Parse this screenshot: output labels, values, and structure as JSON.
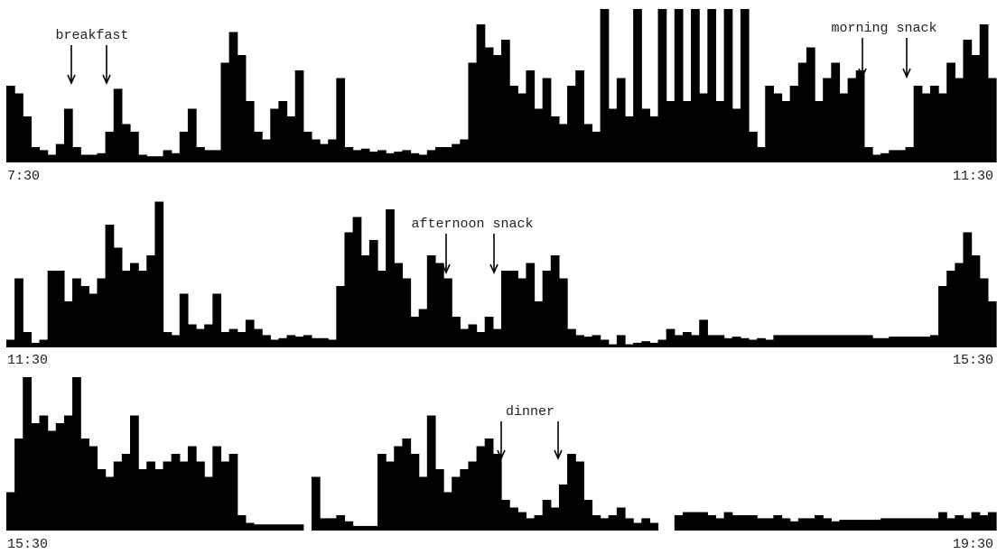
{
  "chart_data": [
    {
      "type": "bar",
      "color": "#000000",
      "ylim": [
        0,
        100
      ],
      "x_labels": [
        "7:30",
        "11:30"
      ],
      "annotations": [
        "breakfast",
        "morning snack"
      ],
      "values": [
        50,
        45,
        30,
        10,
        8,
        5,
        12,
        35,
        10,
        5,
        5,
        6,
        20,
        48,
        25,
        20,
        5,
        4,
        4,
        8,
        6,
        20,
        35,
        10,
        8,
        8,
        65,
        85,
        70,
        40,
        20,
        15,
        35,
        40,
        30,
        60,
        20,
        15,
        12,
        15,
        55,
        10,
        8,
        9,
        7,
        8,
        6,
        7,
        8,
        6,
        5,
        8,
        10,
        10,
        12,
        15,
        65,
        90,
        75,
        70,
        80,
        50,
        45,
        60,
        35,
        55,
        30,
        25,
        50,
        60,
        25,
        20,
        100,
        35,
        55,
        30,
        100,
        35,
        30,
        100,
        40,
        100,
        40,
        100,
        45,
        100,
        40,
        100,
        35,
        100,
        20,
        10,
        50,
        45,
        40,
        50,
        65,
        75,
        40,
        55,
        65,
        45,
        55,
        60,
        10,
        5,
        6,
        8,
        8,
        10,
        50,
        45,
        50,
        45,
        65,
        55,
        80,
        70,
        90,
        55
      ]
    },
    {
      "type": "bar",
      "color": "#000000",
      "ylim": [
        0,
        100
      ],
      "x_labels": [
        "11:30",
        "15:30"
      ],
      "annotations": [
        "afternoon snack"
      ],
      "values": [
        5,
        45,
        10,
        3,
        5,
        50,
        50,
        30,
        45,
        40,
        35,
        45,
        80,
        65,
        50,
        55,
        50,
        60,
        95,
        10,
        8,
        35,
        15,
        12,
        15,
        35,
        10,
        12,
        10,
        18,
        12,
        8,
        5,
        6,
        8,
        7,
        8,
        6,
        6,
        5,
        40,
        75,
        85,
        60,
        70,
        50,
        90,
        55,
        45,
        20,
        25,
        60,
        55,
        45,
        20,
        12,
        15,
        10,
        20,
        12,
        50,
        50,
        45,
        55,
        30,
        50,
        60,
        45,
        12,
        8,
        7,
        8,
        5,
        2,
        8,
        2,
        3,
        4,
        3,
        5,
        12,
        8,
        10,
        8,
        18,
        8,
        8,
        6,
        7,
        6,
        5,
        6,
        5,
        8,
        8,
        8,
        8,
        8,
        8,
        8,
        8,
        8,
        8,
        8,
        8,
        6,
        6,
        7,
        7,
        7,
        7,
        7,
        8,
        40,
        50,
        55,
        75,
        60,
        45,
        30
      ]
    },
    {
      "type": "bar",
      "color": "#000000",
      "ylim": [
        0,
        100
      ],
      "x_labels": [
        "15:30",
        "19:30"
      ],
      "annotations": [
        "dinner"
      ],
      "values": [
        25,
        60,
        100,
        70,
        75,
        65,
        70,
        75,
        100,
        60,
        55,
        40,
        35,
        45,
        50,
        75,
        40,
        45,
        40,
        45,
        50,
        45,
        55,
        45,
        35,
        55,
        45,
        50,
        10,
        5,
        4,
        4,
        4,
        4,
        4,
        4,
        0,
        35,
        8,
        8,
        10,
        6,
        3,
        3,
        3,
        50,
        45,
        55,
        60,
        50,
        35,
        75,
        40,
        25,
        35,
        40,
        45,
        55,
        60,
        50,
        20,
        15,
        12,
        8,
        10,
        20,
        15,
        30,
        50,
        45,
        20,
        10,
        8,
        10,
        15,
        8,
        5,
        8,
        5,
        0,
        0,
        10,
        12,
        12,
        12,
        10,
        8,
        12,
        10,
        10,
        10,
        8,
        8,
        10,
        8,
        6,
        8,
        8,
        10,
        8,
        6,
        7,
        7,
        7,
        7,
        7,
        8,
        8,
        8,
        8,
        8,
        8,
        8,
        12,
        8,
        10,
        8,
        12,
        10,
        12
      ]
    }
  ]
}
